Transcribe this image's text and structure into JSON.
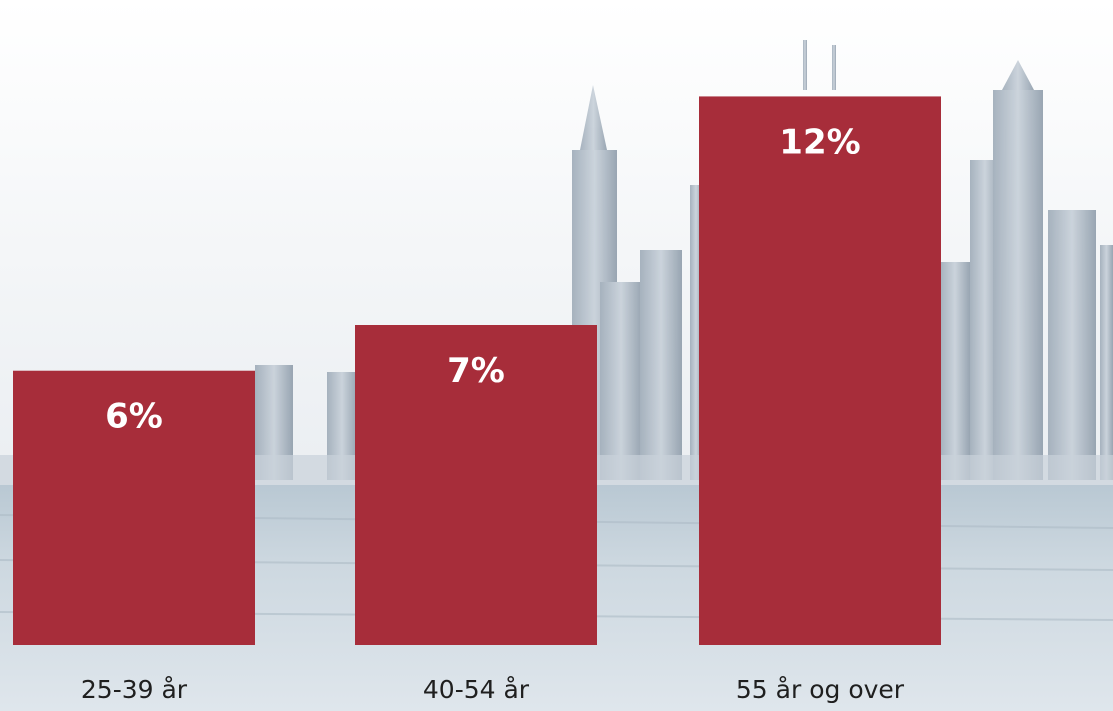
{
  "chart_data": {
    "type": "bar",
    "categories": [
      "25-39 år",
      "40-54 år",
      "55 år og over"
    ],
    "values": [
      6,
      7,
      12
    ],
    "value_labels": [
      "6%",
      "7%",
      "12%"
    ],
    "ylim": [
      0,
      14
    ],
    "grid": false,
    "bar_color": "#a72d3a",
    "label_color": "#ffffff"
  }
}
